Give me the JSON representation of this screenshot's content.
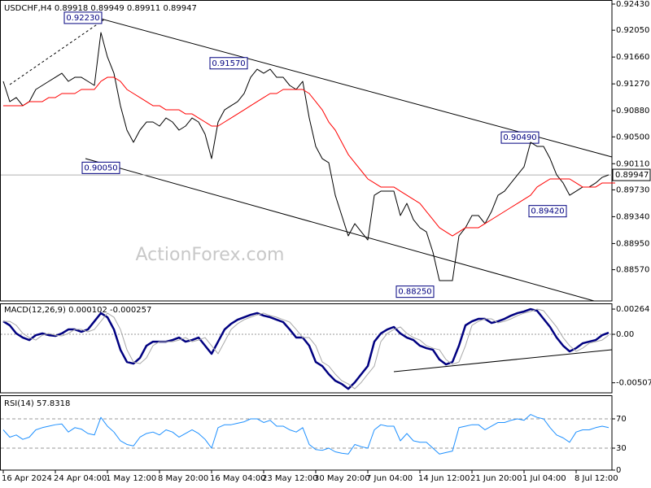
{
  "chart_data": [
    {
      "type": "line",
      "title": "USDCHF,H4  0.89918 0.89949 0.89911 0.89947",
      "watermark": "ActionForex.com",
      "ylim": [
        0.88116,
        0.92489
      ],
      "yticks": [
        {
          "value": 0.9243,
          "label": "0.92430"
        },
        {
          "value": 0.9205,
          "label": "0.92050"
        },
        {
          "value": 0.9166,
          "label": "0.91660"
        },
        {
          "value": 0.9127,
          "label": "0.91270"
        },
        {
          "value": 0.9088,
          "label": "0.90880"
        },
        {
          "value": 0.905,
          "label": "0.90500"
        },
        {
          "value": 0.9011,
          "label": "0.90110"
        },
        {
          "value": 0.8973,
          "label": "0.89730"
        },
        {
          "value": 0.8934,
          "label": "0.89340"
        },
        {
          "value": 0.8895,
          "label": "0.88950"
        },
        {
          "value": 0.8857,
          "label": "0.88570"
        }
      ],
      "grid": false,
      "current_price": 0.89947,
      "annotations": [
        {
          "value": 0.9223,
          "label": "0.92230"
        },
        {
          "value": 0.9157,
          "label": "0.91570"
        },
        {
          "value": 0.9005,
          "label": "0.90050"
        },
        {
          "value": 0.9049,
          "label": "0.90490"
        },
        {
          "value": 0.8942,
          "label": "0.89420"
        },
        {
          "value": 0.8825,
          "label": "0.88250"
        }
      ],
      "series": [
        {
          "color": "#000000",
          "values": [
            0.91307,
            0.91012,
            0.91071,
            0.90953,
            0.91012,
            0.91189,
            0.91248,
            0.91307,
            0.91366,
            0.91425,
            0.91307,
            0.91366,
            0.91366,
            0.91307,
            0.91248,
            0.92016,
            0.91662,
            0.91425,
            0.90953,
            0.90598,
            0.90421,
            0.90598,
            0.90716,
            0.90716,
            0.90657,
            0.90775,
            0.90716,
            0.90598,
            0.90657,
            0.90775,
            0.90716,
            0.90539,
            0.90184,
            0.90716,
            0.90893,
            0.90953,
            0.91012,
            0.9113,
            0.91366,
            0.91484,
            0.91425,
            0.91484,
            0.91366,
            0.91366,
            0.91248,
            0.91189,
            0.91307,
            0.90775,
            0.90362,
            0.90184,
            0.90125,
            0.89652,
            0.89357,
            0.89061,
            0.89239,
            0.8912,
            0.89002,
            0.89652,
            0.89711,
            0.89711,
            0.89711,
            0.89357,
            0.89534,
            0.89298,
            0.8918,
            0.8912,
            0.88825,
            0.88411,
            0.88411,
            0.88411,
            0.89061,
            0.8918,
            0.89357,
            0.89357,
            0.89239,
            0.89416,
            0.89652,
            0.89711,
            0.8983,
            0.89948,
            0.90066,
            0.90421,
            0.90362,
            0.90362,
            0.90184,
            0.89948,
            0.8983,
            0.89652,
            0.89711,
            0.89771,
            0.89771,
            0.8983,
            0.89912,
            0.89948
          ]
        },
        {
          "color": "#ff0000",
          "values": [
            0.90953,
            0.90953,
            0.90953,
            0.90953,
            0.91012,
            0.91012,
            0.91012,
            0.91071,
            0.91071,
            0.9113,
            0.9113,
            0.9113,
            0.91189,
            0.91189,
            0.91189,
            0.91307,
            0.91366,
            0.91366,
            0.91307,
            0.91189,
            0.9113,
            0.91071,
            0.91012,
            0.90953,
            0.90953,
            0.90893,
            0.90893,
            0.90893,
            0.90834,
            0.90834,
            0.90775,
            0.90716,
            0.90657,
            0.90657,
            0.90716,
            0.90775,
            0.90834,
            0.90893,
            0.90953,
            0.91012,
            0.91071,
            0.9113,
            0.9113,
            0.91189,
            0.91189,
            0.91189,
            0.91189,
            0.9113,
            0.91012,
            0.90893,
            0.90716,
            0.90598,
            0.90421,
            0.90243,
            0.90125,
            0.90007,
            0.89889,
            0.8983,
            0.89771,
            0.89771,
            0.89771,
            0.89711,
            0.89652,
            0.89593,
            0.89534,
            0.89416,
            0.89298,
            0.8918,
            0.8912,
            0.89061,
            0.8912,
            0.8918,
            0.8918,
            0.8918,
            0.89239,
            0.89298,
            0.89357,
            0.89416,
            0.89475,
            0.89534,
            0.89593,
            0.89652,
            0.89771,
            0.8983,
            0.89889,
            0.89889,
            0.89889,
            0.89889,
            0.8983,
            0.89771,
            0.89771,
            0.89771,
            0.8983,
            0.8983,
            0.8983
          ]
        }
      ]
    },
    {
      "type": "line",
      "title": "MACD(12,26,9) 0.000102 -0.000257",
      "ylim": [
        -0.00613,
        0.00324
      ],
      "yticks": [
        0.00264,
        {
          "value": 0,
          "label": "0.00"
        },
        -0.005077
      ],
      "grid": false,
      "zero_line": true,
      "series": [
        {
          "color": "#000080",
          "values": [
            0.00136,
            0.00094,
            9e-05,
            -0.00034,
            -0.0006,
            -9e-05,
            9e-05,
            -9e-05,
            -0.00017,
            9e-05,
            0.00051,
            0.00051,
            0.00026,
            0.00051,
            0.00136,
            0.00222,
            0.00179,
            0.00051,
            -0.00162,
            -0.0029,
            -0.00307,
            -0.00247,
            -0.00119,
            -0.00077,
            -0.00077,
            -0.00077,
            -0.0006,
            -0.00034,
            -0.00077,
            -0.0006,
            -0.00034,
            -0.00119,
            -0.00204,
            -0.00077,
            0.00051,
            0.00111,
            0.00153,
            0.00179,
            0.00204,
            0.00222,
            0.00196,
            0.00179,
            0.00153,
            0.00128,
            0.00051,
            -0.00034,
            -0.00034,
            -0.00119,
            -0.0029,
            -0.00332,
            -0.00417,
            -0.00486,
            -0.0052,
            -0.00571,
            -0.00503,
            -0.00417,
            -0.00332,
            -0.00077,
            9e-05,
            0.00051,
            0.00077,
            9e-05,
            -0.00034,
            -0.0006,
            -0.00119,
            -0.00145,
            -0.00162,
            -0.00264,
            -0.00315,
            -0.0029,
            -0.00119,
            0.00094,
            0.00136,
            0.00162,
            0.00162,
            0.00119,
            0.00136,
            0.00162,
            0.00196,
            0.00222,
            0.00239,
            0.00264,
            0.00247,
            0.00162,
            0.00077,
            -0.00034,
            -0.00119,
            -0.00179,
            -0.00145,
            -0.00094,
            -0.00077,
            -0.0006,
            -9e-05,
            0.00017
          ]
        },
        {
          "color": "#a9a9a9",
          "values": [
            0.00136,
            0.00136,
            0.00094,
            9e-05,
            -0.00034,
            -0.0006,
            -9e-05,
            9e-05,
            -9e-05,
            -0.00017,
            9e-05,
            0.00051,
            0.00051,
            0.00026,
            0.00051,
            0.00136,
            0.00222,
            0.00179,
            0.00051,
            -0.00162,
            -0.0029,
            -0.00307,
            -0.00247,
            -0.00119,
            -0.00077,
            -0.00077,
            -0.00077,
            -0.0006,
            -0.00034,
            -0.00077,
            -0.0006,
            -0.00034,
            -0.00119,
            -0.00204,
            -0.00077,
            0.00051,
            0.00111,
            0.00153,
            0.00179,
            0.00204,
            0.00222,
            0.00196,
            0.00179,
            0.00153,
            0.00128,
            0.00051,
            -0.00034,
            -0.00034,
            -0.00119,
            -0.0029,
            -0.00332,
            -0.00417,
            -0.00486,
            -0.0052,
            -0.00571,
            -0.00503,
            -0.00417,
            -0.00332,
            -0.00077,
            9e-05,
            0.00051,
            0.00077,
            9e-05,
            -0.00034,
            -0.0006,
            -0.00119,
            -0.00145,
            -0.00162,
            -0.00264,
            -0.00315,
            -0.0029,
            -0.00119,
            0.00094,
            0.00136,
            0.00162,
            0.00162,
            0.00119,
            0.00136,
            0.00162,
            0.00196,
            0.00222,
            0.00239,
            0.00264,
            0.00247,
            0.00162,
            0.00077,
            -0.00034,
            -0.00119,
            -0.00179,
            -0.00145,
            -0.00094,
            -0.00077,
            -0.0006,
            -9e-05
          ]
        }
      ]
    },
    {
      "type": "line",
      "title": "RSI(14) 57.8318",
      "ylim": [
        0,
        102.2
      ],
      "yticks": [
        70,
        30,
        0
      ],
      "grid": true,
      "categories": [
        "16 Apr 2024",
        null,
        null,
        null,
        null,
        null,
        null,
        null,
        "24 Apr 04:00",
        null,
        null,
        null,
        null,
        null,
        null,
        null,
        "1 May 12:00",
        null,
        null,
        null,
        null,
        null,
        null,
        null,
        "8 May 20:00",
        null,
        null,
        null,
        null,
        null,
        null,
        null,
        "16 May 04:00",
        null,
        null,
        null,
        null,
        null,
        null,
        null,
        "23 May 12:00",
        null,
        null,
        null,
        null,
        null,
        null,
        null,
        "30 May 20:00",
        null,
        null,
        null,
        null,
        null,
        null,
        null,
        "7 Jun 04:00",
        null,
        null,
        null,
        null,
        null,
        null,
        null,
        "14 Jun 12:00",
        null,
        null,
        null,
        null,
        null,
        null,
        null,
        "21 Jun 20:00",
        null,
        null,
        null,
        null,
        null,
        null,
        null,
        "1 Jul 04:00",
        null,
        null,
        null,
        null,
        null,
        null,
        null,
        "8 Jul 12:00",
        null,
        null,
        null,
        null,
        null
      ],
      "series": [
        {
          "color": "#1e90ff",
          "values": [
            55,
            45,
            48,
            42,
            45,
            55,
            58,
            60,
            62,
            63,
            52,
            58,
            56,
            50,
            48,
            72,
            60,
            52,
            40,
            35,
            33,
            45,
            50,
            52,
            48,
            55,
            52,
            45,
            50,
            55,
            50,
            42,
            30,
            58,
            62,
            62,
            64,
            66,
            70,
            70,
            65,
            68,
            60,
            60,
            55,
            52,
            58,
            35,
            28,
            27,
            30,
            25,
            23,
            22,
            35,
            32,
            30,
            55,
            62,
            60,
            60,
            40,
            50,
            40,
            38,
            38,
            30,
            22,
            24,
            26,
            58,
            60,
            62,
            62,
            55,
            60,
            65,
            65,
            68,
            70,
            68,
            76,
            72,
            70,
            58,
            48,
            44,
            38,
            52,
            55,
            55,
            58,
            60,
            58
          ]
        }
      ]
    }
  ]
}
